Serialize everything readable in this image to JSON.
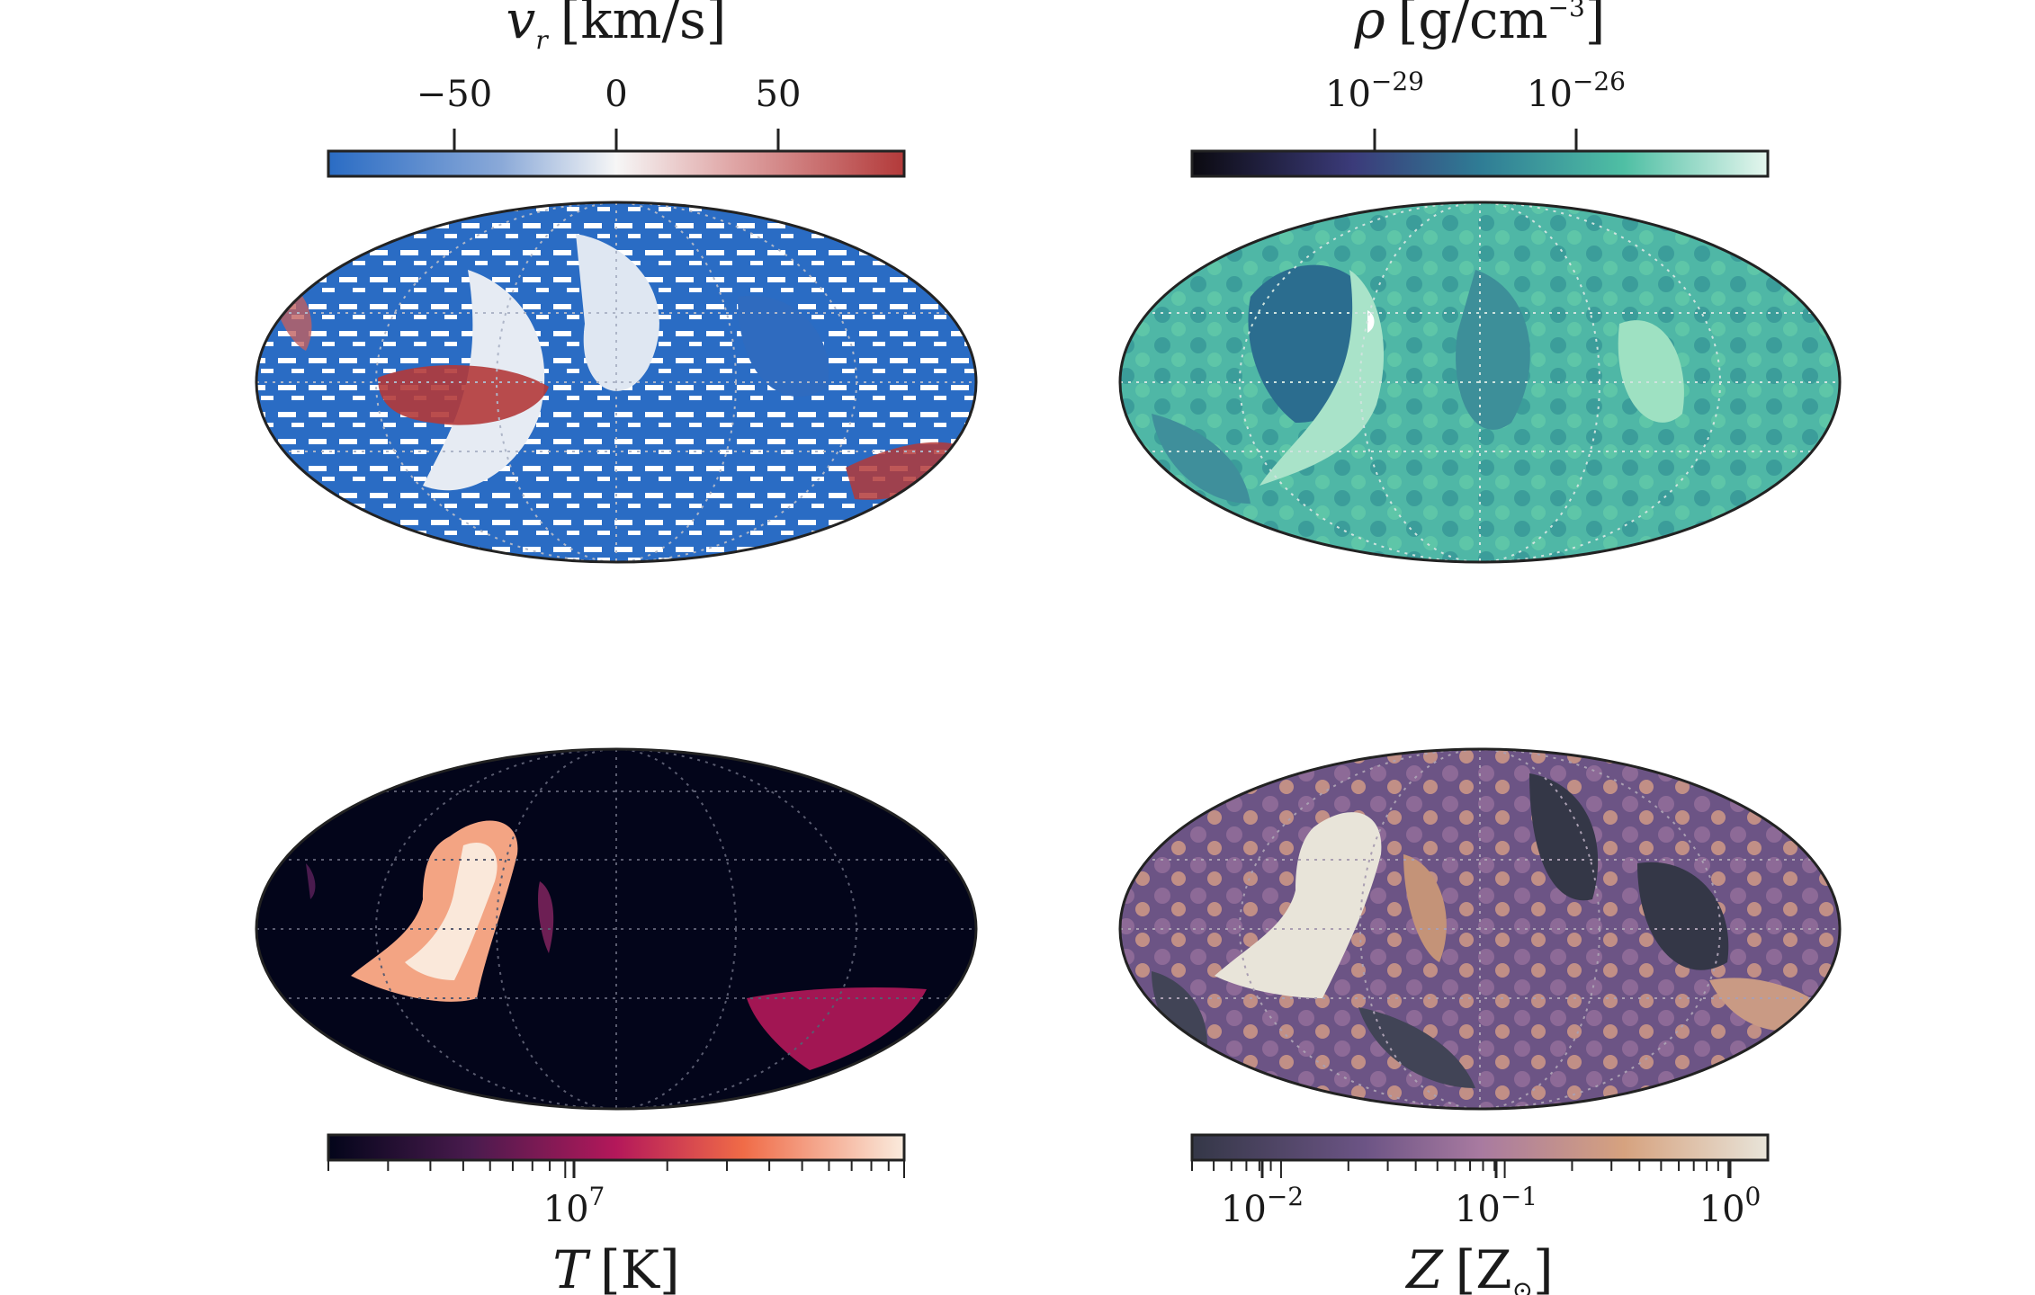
{
  "chart_data": [
    {
      "type": "heatmap",
      "projection": "mollweide",
      "quantity": "v_r",
      "colorbar_label": "v_r [km/s]",
      "colorbar_position": "top",
      "colormap": [
        "#2a6cc4",
        "#ffffff",
        "#b33a3a"
      ],
      "scale": "linear",
      "range": [
        -90,
        90
      ],
      "ticks": [
        -50,
        0,
        50
      ],
      "tick_labels": [
        "−50",
        "0",
        "50"
      ],
      "grid": true
    },
    {
      "type": "heatmap",
      "projection": "mollweide",
      "quantity": "rho",
      "colorbar_label": "ρ [g/cm−3]",
      "colorbar_position": "top",
      "colormap": [
        "#0b0a10",
        "#3b3b7a",
        "#2f7c95",
        "#4fbfa4",
        "#e5f6ee"
      ],
      "scale": "log",
      "range_exponent": [
        -32,
        -23
      ],
      "ticks_exponent": [
        -29,
        -26
      ],
      "tick_labels": [
        "10−29",
        "10−26"
      ],
      "grid": true
    },
    {
      "type": "heatmap",
      "projection": "mollweide",
      "quantity": "T",
      "colorbar_label": "T [K]",
      "colorbar_position": "bottom",
      "colormap": [
        "#03051a",
        "#4a1b4e",
        "#b4185a",
        "#f06b47",
        "#faebdd"
      ],
      "scale": "log",
      "range": [
        2000000,
        100000000
      ],
      "ticks": [
        10000000
      ],
      "tick_labels": [
        "10^7"
      ],
      "grid": true
    },
    {
      "type": "heatmap",
      "projection": "mollweide",
      "quantity": "Z",
      "colorbar_label": "Z [Z⊙]",
      "colorbar_position": "bottom",
      "colormap": [
        "#343747",
        "#6c5485",
        "#a87aa0",
        "#d6a27f",
        "#e8e4d9"
      ],
      "scale": "log",
      "range": [
        0.004,
        1.5
      ],
      "ticks": [
        0.01,
        0.1,
        1
      ],
      "tick_labels": [
        "10^-2",
        "10^-1",
        "10^0"
      ],
      "grid": true
    }
  ],
  "labels": {
    "vr_sym": "v",
    "vr_sub": "r",
    "vr_unit": "[km/s]",
    "rho_sym": "ρ",
    "rho_unit_a": "[g/cm",
    "rho_unit_exp": "−3",
    "rho_unit_b": "]",
    "T_sym": "T",
    "T_unit": "[K]",
    "Z_sym": "Z",
    "Z_unit_a": "[Z",
    "Z_unit_sub": "⊙",
    "Z_unit_b": "]",
    "vr_ticks": [
      "−50",
      "0",
      "50"
    ],
    "rho_base": "10",
    "rho_exps": [
      "−29",
      "−26"
    ],
    "T_base": "10",
    "T_exp": "7",
    "Z_base": "10",
    "Z_exps": [
      "−2",
      "−1",
      "0"
    ]
  }
}
